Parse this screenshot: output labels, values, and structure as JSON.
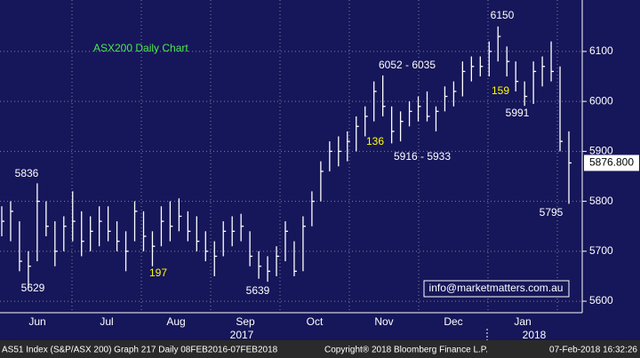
{
  "chart_data": {
    "type": "ohlc",
    "title": "ASX200 Daily Chart",
    "title_color": "#4de84d",
    "color": "#ffffff",
    "background": "#16165a",
    "high": [
      5790,
      5800,
      5760,
      5700,
      5836,
      5800,
      5760,
      5770,
      5820,
      5780,
      5770,
      5790,
      5790,
      5760,
      5740,
      5800,
      5780,
      5740,
      5790,
      5800,
      5806,
      5780,
      5770,
      5740,
      5720,
      5760,
      5770,
      5775,
      5740,
      5700,
      5690,
      5710,
      5760,
      5720,
      5770,
      5820,
      5880,
      5920,
      5930,
      5940,
      5970,
      5990,
      6040,
      6052,
      5990,
      5980,
      6000,
      6010,
      6020,
      5990,
      6030,
      6040,
      6080,
      6090,
      6090,
      6120,
      6150,
      6110,
      6080,
      6040,
      6080,
      6090,
      6120,
      6070,
      5940
    ],
    "low": [
      5730,
      5720,
      5660,
      5629,
      5680,
      5730,
      5670,
      5700,
      5720,
      5690,
      5700,
      5710,
      5720,
      5700,
      5660,
      5720,
      5700,
      5670,
      5710,
      5720,
      5740,
      5720,
      5700,
      5680,
      5650,
      5690,
      5710,
      5720,
      5670,
      5645,
      5639,
      5650,
      5680,
      5650,
      5660,
      5750,
      5800,
      5860,
      5870,
      5880,
      5900,
      5930,
      5960,
      5970,
      5916,
      5920,
      5950,
      5960,
      5960,
      5940,
      5980,
      5990,
      6010,
      6040,
      6050,
      6050,
      6080,
      6050,
      6020,
      5991,
      5995,
      6030,
      6040,
      5900,
      5795
    ],
    "close": [
      5760,
      5780,
      5680,
      5670,
      5800,
      5750,
      5700,
      5750,
      5760,
      5720,
      5740,
      5760,
      5740,
      5720,
      5700,
      5780,
      5730,
      5710,
      5760,
      5750,
      5770,
      5740,
      5720,
      5700,
      5690,
      5740,
      5740,
      5750,
      5690,
      5670,
      5660,
      5690,
      5740,
      5660,
      5750,
      5800,
      5860,
      5900,
      5900,
      5920,
      5950,
      5970,
      6020,
      5990,
      5940,
      5960,
      5980,
      5990,
      5970,
      5980,
      6010,
      6020,
      6060,
      6070,
      6070,
      6100,
      6130,
      6080,
      6040,
      6010,
      6060,
      6070,
      6060,
      5920,
      5876.8
    ],
    "last_value": {
      "value": 5876.8,
      "label": "5876.800"
    },
    "ylim": [
      5577,
      6203
    ],
    "yticks": [
      5600,
      5700,
      5800,
      5900,
      6000,
      6100
    ],
    "grid": true,
    "months": [
      "Jun",
      "Jul",
      "Aug",
      "Sep",
      "Oct",
      "Nov",
      "Dec",
      "Jan"
    ],
    "years": [
      "2017",
      "2018"
    ],
    "annotations": [
      {
        "text": "5836",
        "color": "#ffffff"
      },
      {
        "text": "5629",
        "color": "#ffffff"
      },
      {
        "text": "197",
        "color": "#ffff00"
      },
      {
        "text": "5639",
        "color": "#ffffff"
      },
      {
        "text": "6052 - 6035",
        "color": "#ffffff"
      },
      {
        "text": "136",
        "color": "#ffff00"
      },
      {
        "text": "5916 - 5933",
        "color": "#ffffff"
      },
      {
        "text": "6150",
        "color": "#ffffff"
      },
      {
        "text": "159",
        "color": "#ffff00"
      },
      {
        "text": "5991",
        "color": "#ffffff"
      },
      {
        "text": "5795",
        "color": "#ffffff"
      }
    ],
    "contact": "info@marketmatters.com.au",
    "footer": {
      "left": "AS51 Index (S&P/ASX 200)  Graph 217  Daily 08FEB2016-07FEB2018",
      "center": "Copyright® 2018 Bloomberg Finance L.P.",
      "right": "07-Feb-2018 16:32:26"
    }
  }
}
